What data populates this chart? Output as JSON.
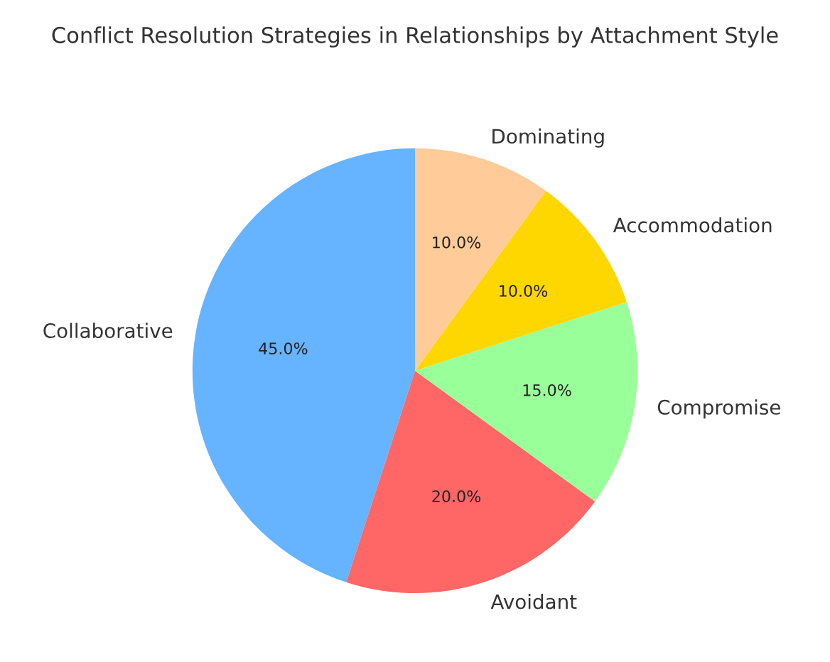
{
  "chart_data": {
    "type": "pie",
    "title": "Conflict Resolution Strategies in Relationships by Attachment Style",
    "categories": [
      "Collaborative",
      "Avoidant",
      "Compromise",
      "Accommodation",
      "Dominating"
    ],
    "values": [
      45,
      20,
      15,
      10,
      10
    ],
    "colors": [
      "#66b3ff",
      "#ff6666",
      "#99ff99",
      "#ffd700",
      "#ffcc99"
    ],
    "value_labels": [
      "45.0%",
      "20.0%",
      "15.0%",
      "10.0%",
      "10.0%"
    ],
    "legend": false
  }
}
